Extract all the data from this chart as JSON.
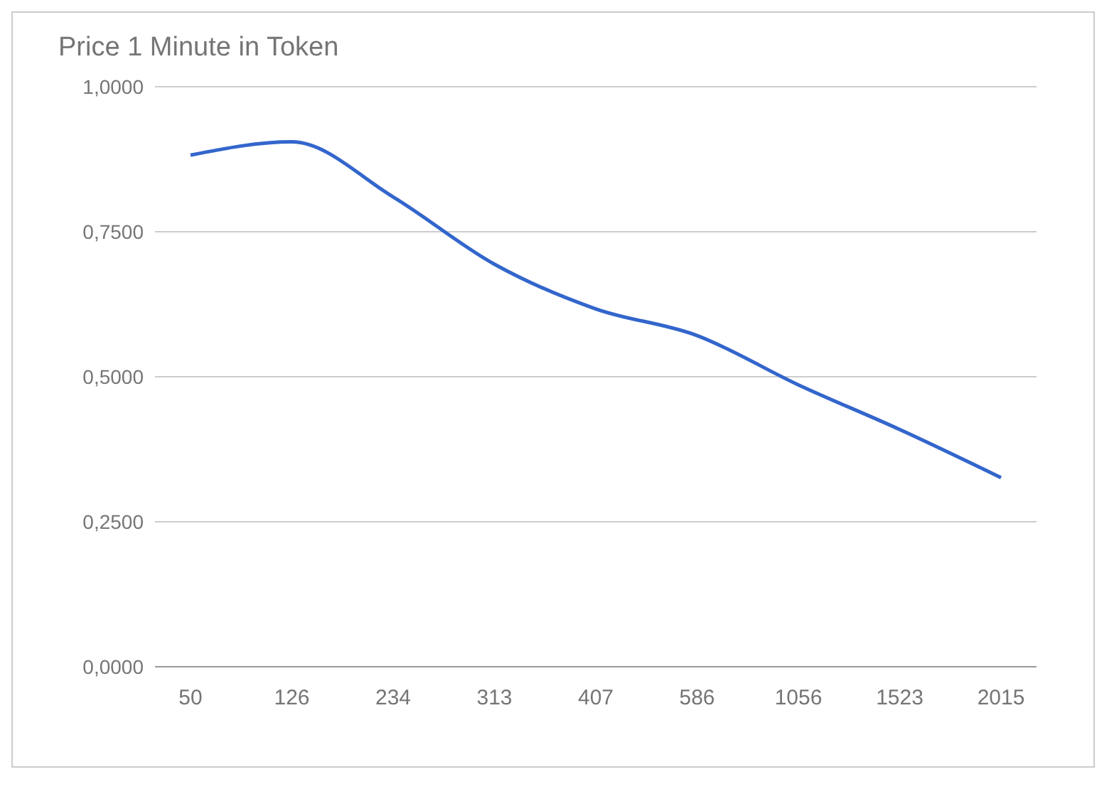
{
  "chart_data": {
    "type": "line",
    "title": "Price 1 Minute in Token",
    "categories": [
      "50",
      "126",
      "234",
      "313",
      "407",
      "586",
      "1056",
      "1523",
      "2015"
    ],
    "series": [
      {
        "color": "#3366cc",
        "values": [
          0.882,
          0.905,
          0.81,
          0.694,
          0.617,
          0.571,
          0.486,
          0.409,
          0.326
        ]
      }
    ],
    "ylim": [
      0,
      1
    ],
    "yticks": [
      {
        "value": 0,
        "label": "0,0000"
      },
      {
        "value": 0.25,
        "label": "0,2500"
      },
      {
        "value": 0.5,
        "label": "0,5000"
      },
      {
        "value": 0.75,
        "label": "0,7500"
      },
      {
        "value": 1,
        "label": "1,0000"
      }
    ],
    "grid": "y",
    "legend": false,
    "marker": "none",
    "line_style": "solid"
  }
}
